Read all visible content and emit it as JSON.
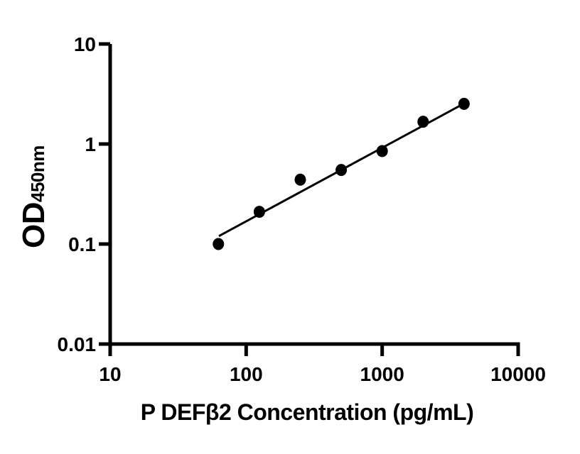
{
  "figure": {
    "background": "#ffffff",
    "ink_color": "#000000"
  },
  "chart_data": {
    "type": "scatter",
    "subtype": "standard-curve-with-fit-line",
    "xlabel": "P DEFβ2 Concentration (pg/mL)",
    "ylabel": "OD450nm",
    "ylabel_main": "OD",
    "ylabel_sub": "450nm",
    "x_scale": "log10",
    "y_scale": "log10",
    "xlim": [
      10,
      10000
    ],
    "ylim": [
      0.01,
      10
    ],
    "x_ticks": [
      "10",
      "100",
      "1000",
      "10000"
    ],
    "y_ticks": [
      "10",
      "1",
      "0.1",
      "0.01"
    ],
    "grid": false,
    "legend": false,
    "marker": {
      "shape": "filled-circle",
      "color": "#000000"
    },
    "line_color": "#000000",
    "series": [
      {
        "x": [
          62.5,
          125,
          250,
          500,
          1000,
          2000,
          4000
        ],
        "od": [
          0.1,
          0.21,
          0.44,
          0.55,
          0.85,
          1.67,
          2.52
        ]
      }
    ],
    "trend_line": {
      "x": [
        63,
        4000
      ],
      "od": [
        0.12,
        2.54
      ]
    }
  }
}
